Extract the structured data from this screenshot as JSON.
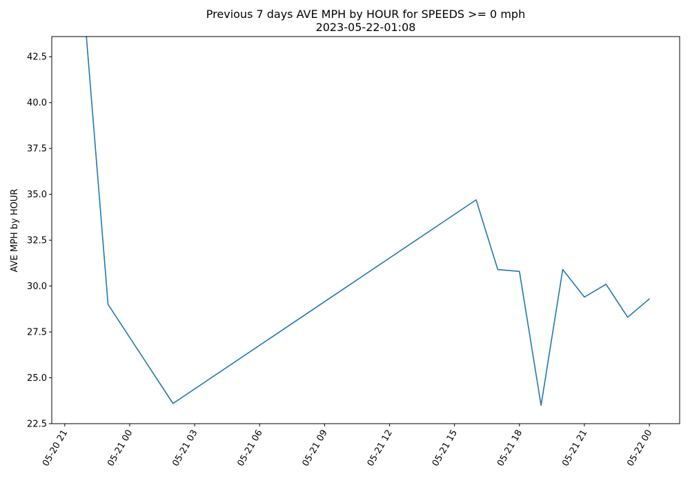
{
  "chart_data": {
    "type": "line",
    "title": "Previous 7 days AVE MPH by HOUR for SPEEDS >= 0 mph",
    "subtitle": "2023-05-22-01:08",
    "xlabel": "",
    "ylabel": "AVE MPH by HOUR",
    "x_axis_type": "datetime",
    "x_tick_values": [
      "2023-05-20T21:00",
      "2023-05-21T00:00",
      "2023-05-21T03:00",
      "2023-05-21T06:00",
      "2023-05-21T09:00",
      "2023-05-21T12:00",
      "2023-05-21T15:00",
      "2023-05-21T18:00",
      "2023-05-21T21:00",
      "2023-05-22T00:00"
    ],
    "x_tick_labels": [
      "05-20 21",
      "05-21 00",
      "05-21 03",
      "05-21 06",
      "05-21 09",
      "05-21 12",
      "05-21 15",
      "05-21 18",
      "05-21 21",
      "05-22 00"
    ],
    "y_ticks": [
      22.5,
      25.0,
      27.5,
      30.0,
      32.5,
      35.0,
      37.5,
      40.0,
      42.5
    ],
    "y_tick_labels": [
      "22.5",
      "25.0",
      "27.5",
      "30.0",
      "32.5",
      "35.0",
      "37.5",
      "40.0",
      "42.5"
    ],
    "ylim": [
      22.5,
      43.6
    ],
    "xlim": [
      "2023-05-20T20:24",
      "2023-05-22T01:24"
    ],
    "grid": false,
    "series": [
      {
        "color": "#1f77b4",
        "x": [
          "2023-05-20T22:00",
          "2023-05-20T23:00",
          "2023-05-21T02:00",
          "2023-05-21T16:00",
          "2023-05-21T17:00",
          "2023-05-21T18:00",
          "2023-05-21T19:00",
          "2023-05-21T20:00",
          "2023-05-21T21:00",
          "2023-05-21T22:00",
          "2023-05-21T23:00",
          "2023-05-22T00:00"
        ],
        "y": [
          43.6,
          29.0,
          23.6,
          34.7,
          30.9,
          30.8,
          23.5,
          30.9,
          29.4,
          30.1,
          28.3,
          29.3
        ]
      }
    ]
  }
}
